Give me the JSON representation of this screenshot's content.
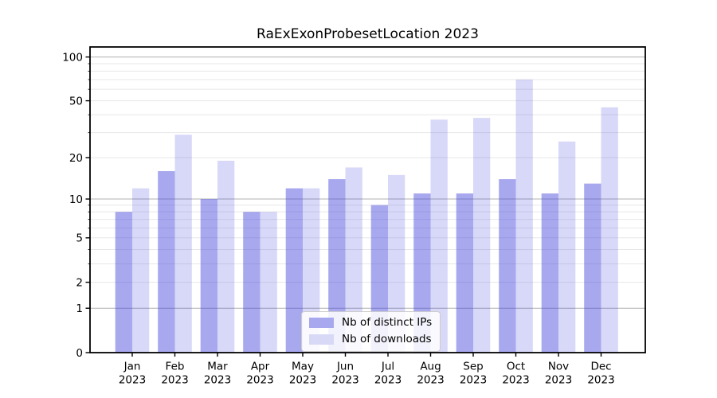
{
  "chart_data": {
    "type": "bar",
    "title": "RaExExonProbesetLocation 2023",
    "categories": [
      "Jan",
      "Feb",
      "Mar",
      "Apr",
      "May",
      "Jun",
      "Jul",
      "Aug",
      "Sep",
      "Oct",
      "Nov",
      "Dec"
    ],
    "x_year_label": "2023",
    "series": [
      {
        "name": "Nb of distinct IPs",
        "color": "#a8a8ee",
        "fill_rgba": "rgba(70,70,220,0.47)",
        "values": [
          8,
          16,
          10,
          8,
          12,
          14,
          9,
          11,
          11,
          14,
          11,
          13
        ]
      },
      {
        "name": "Nb of downloads",
        "color": "#d8d8f7",
        "fill_rgba": "rgba(70,70,220,0.21)",
        "values": [
          12,
          29,
          19,
          8,
          12,
          17,
          15,
          37,
          38,
          70,
          26,
          45
        ]
      }
    ],
    "yscale": "log1p",
    "ylim": [
      0,
      117
    ],
    "yticks": {
      "values": [
        100,
        50,
        20,
        10,
        5,
        2,
        1,
        0
      ],
      "labels": [
        "100",
        "50",
        "20",
        "10",
        "5",
        "2",
        "1",
        "0"
      ]
    },
    "ygrid_major": [
      1,
      10,
      100
    ],
    "ygrid_minor": [
      2,
      3,
      4,
      5,
      6,
      7,
      8,
      9,
      20,
      30,
      40,
      50,
      60,
      70,
      80,
      90
    ],
    "grid": "on",
    "legend_position": "lower center",
    "xlabel": "",
    "ylabel": ""
  },
  "colors": {
    "background": "#ffffff",
    "axis": "#000000",
    "tick_label": "#000000",
    "grid_major": "#b0b0b0",
    "grid_minor": "#e7e7e7",
    "legend_border": "#cccccc",
    "bar_distinct_ips": "#a8a8ee",
    "bar_downloads": "#d8d8f7"
  }
}
